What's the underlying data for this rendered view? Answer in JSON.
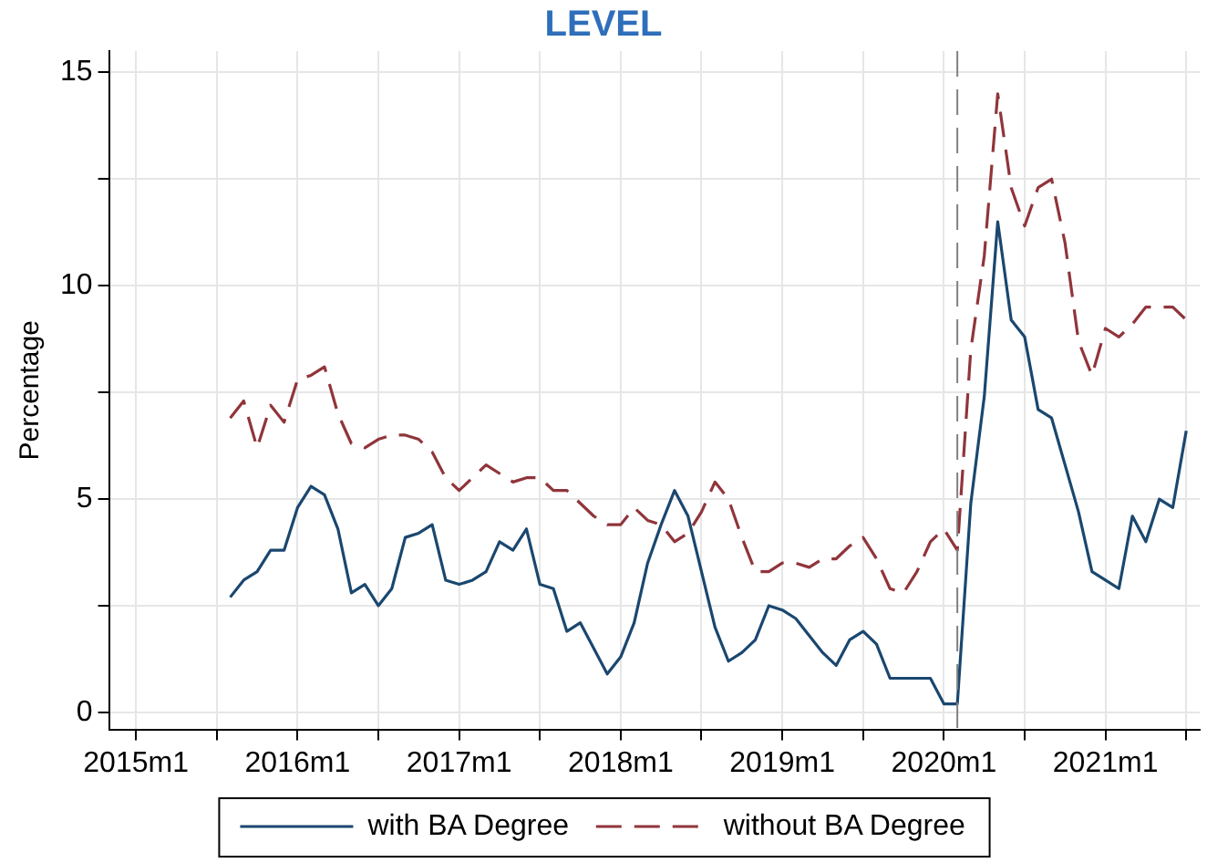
{
  "chart_data": {
    "type": "line",
    "title": "LEVEL",
    "ylabel": "Percentage",
    "x": [
      "2015-08",
      "2015-09",
      "2015-10",
      "2015-11",
      "2015-12",
      "2016-01",
      "2016-02",
      "2016-03",
      "2016-04",
      "2016-05",
      "2016-06",
      "2016-07",
      "2016-08",
      "2016-09",
      "2016-10",
      "2016-11",
      "2016-12",
      "2017-01",
      "2017-02",
      "2017-03",
      "2017-04",
      "2017-05",
      "2017-06",
      "2017-07",
      "2017-08",
      "2017-09",
      "2017-10",
      "2017-11",
      "2017-12",
      "2018-01",
      "2018-02",
      "2018-03",
      "2018-04",
      "2018-05",
      "2018-06",
      "2018-07",
      "2018-08",
      "2018-09",
      "2018-10",
      "2018-11",
      "2018-12",
      "2019-01",
      "2019-02",
      "2019-03",
      "2019-04",
      "2019-05",
      "2019-06",
      "2019-07",
      "2019-08",
      "2019-09",
      "2019-10",
      "2019-11",
      "2019-12",
      "2020-01",
      "2020-02",
      "2020-03",
      "2020-04",
      "2020-05",
      "2020-06",
      "2020-07",
      "2020-08",
      "2020-09",
      "2020-10",
      "2020-11",
      "2020-12",
      "2021-01",
      "2021-02",
      "2021-03",
      "2021-04",
      "2021-05",
      "2021-06",
      "2021-07"
    ],
    "series": [
      {
        "name": "with BA Degree",
        "color": "#1a476f",
        "line_style": "solid",
        "values": [
          2.7,
          3.1,
          3.3,
          3.8,
          3.8,
          4.8,
          5.3,
          5.1,
          4.3,
          2.8,
          3.0,
          2.5,
          2.9,
          4.1,
          4.2,
          4.4,
          3.1,
          3.0,
          3.1,
          3.3,
          4.0,
          3.8,
          4.3,
          3.0,
          2.9,
          1.9,
          2.1,
          1.5,
          0.9,
          1.3,
          2.1,
          3.5,
          4.4,
          5.2,
          4.6,
          3.3,
          2.0,
          1.2,
          1.4,
          1.7,
          2.5,
          2.4,
          2.2,
          1.8,
          1.4,
          1.1,
          1.7,
          1.9,
          1.6,
          0.8,
          0.8,
          0.8,
          0.8,
          0.2,
          0.2,
          4.9,
          7.4,
          11.5,
          9.2,
          8.8,
          7.1,
          6.9,
          5.8,
          4.7,
          3.3,
          3.1,
          2.9,
          4.6,
          4.0,
          5.0,
          4.8,
          6.6
        ]
      },
      {
        "name": "without BA Degree",
        "color": "#90353b",
        "line_style": "dashed",
        "values": [
          6.9,
          7.3,
          6.2,
          7.2,
          6.8,
          7.8,
          7.9,
          8.1,
          7.0,
          6.3,
          6.2,
          6.4,
          6.5,
          6.5,
          6.4,
          6.1,
          5.5,
          5.2,
          5.5,
          5.8,
          5.6,
          5.4,
          5.5,
          5.5,
          5.2,
          5.2,
          4.9,
          4.6,
          4.4,
          4.4,
          4.8,
          4.5,
          4.4,
          4.0,
          4.2,
          4.7,
          5.4,
          5.0,
          4.1,
          3.3,
          3.3,
          3.5,
          3.5,
          3.4,
          3.6,
          3.6,
          3.9,
          4.1,
          3.6,
          2.9,
          2.8,
          3.3,
          4.0,
          4.3,
          3.8,
          8.5,
          10.7,
          14.5,
          12.3,
          11.4,
          12.3,
          12.5,
          11.0,
          8.7,
          7.9,
          9.0,
          8.8,
          9.1,
          9.5,
          9.5,
          9.5,
          9.2
        ]
      }
    ],
    "xlim": [
      "2014-11",
      "2021-08"
    ],
    "xticks": [
      {
        "value": "2015-01",
        "label": "2015m1"
      },
      {
        "value": "2015-07",
        "label": null
      },
      {
        "value": "2016-01",
        "label": "2016m1"
      },
      {
        "value": "2016-07",
        "label": null
      },
      {
        "value": "2017-01",
        "label": "2017m1"
      },
      {
        "value": "2017-07",
        "label": null
      },
      {
        "value": "2018-01",
        "label": "2018m1"
      },
      {
        "value": "2018-07",
        "label": null
      },
      {
        "value": "2019-01",
        "label": "2019m1"
      },
      {
        "value": "2019-07",
        "label": null
      },
      {
        "value": "2020-01",
        "label": "2020m1"
      },
      {
        "value": "2020-07",
        "label": null
      },
      {
        "value": "2021-01",
        "label": "2021m1"
      },
      {
        "value": "2021-07",
        "label": null
      }
    ],
    "ylim": [
      -0.4,
      15.5
    ],
    "yticks": [
      0,
      {
        "value": 2.5,
        "label": null
      },
      5,
      {
        "value": 7.5,
        "label": null
      },
      10,
      {
        "value": 12.5,
        "label": null
      },
      15
    ],
    "ref_lines": [
      {
        "axis": "x",
        "value": "2020-02",
        "color": "#808080",
        "line_style": "dashed"
      }
    ],
    "grid": true,
    "legend": "bottom",
    "marker": "none"
  }
}
